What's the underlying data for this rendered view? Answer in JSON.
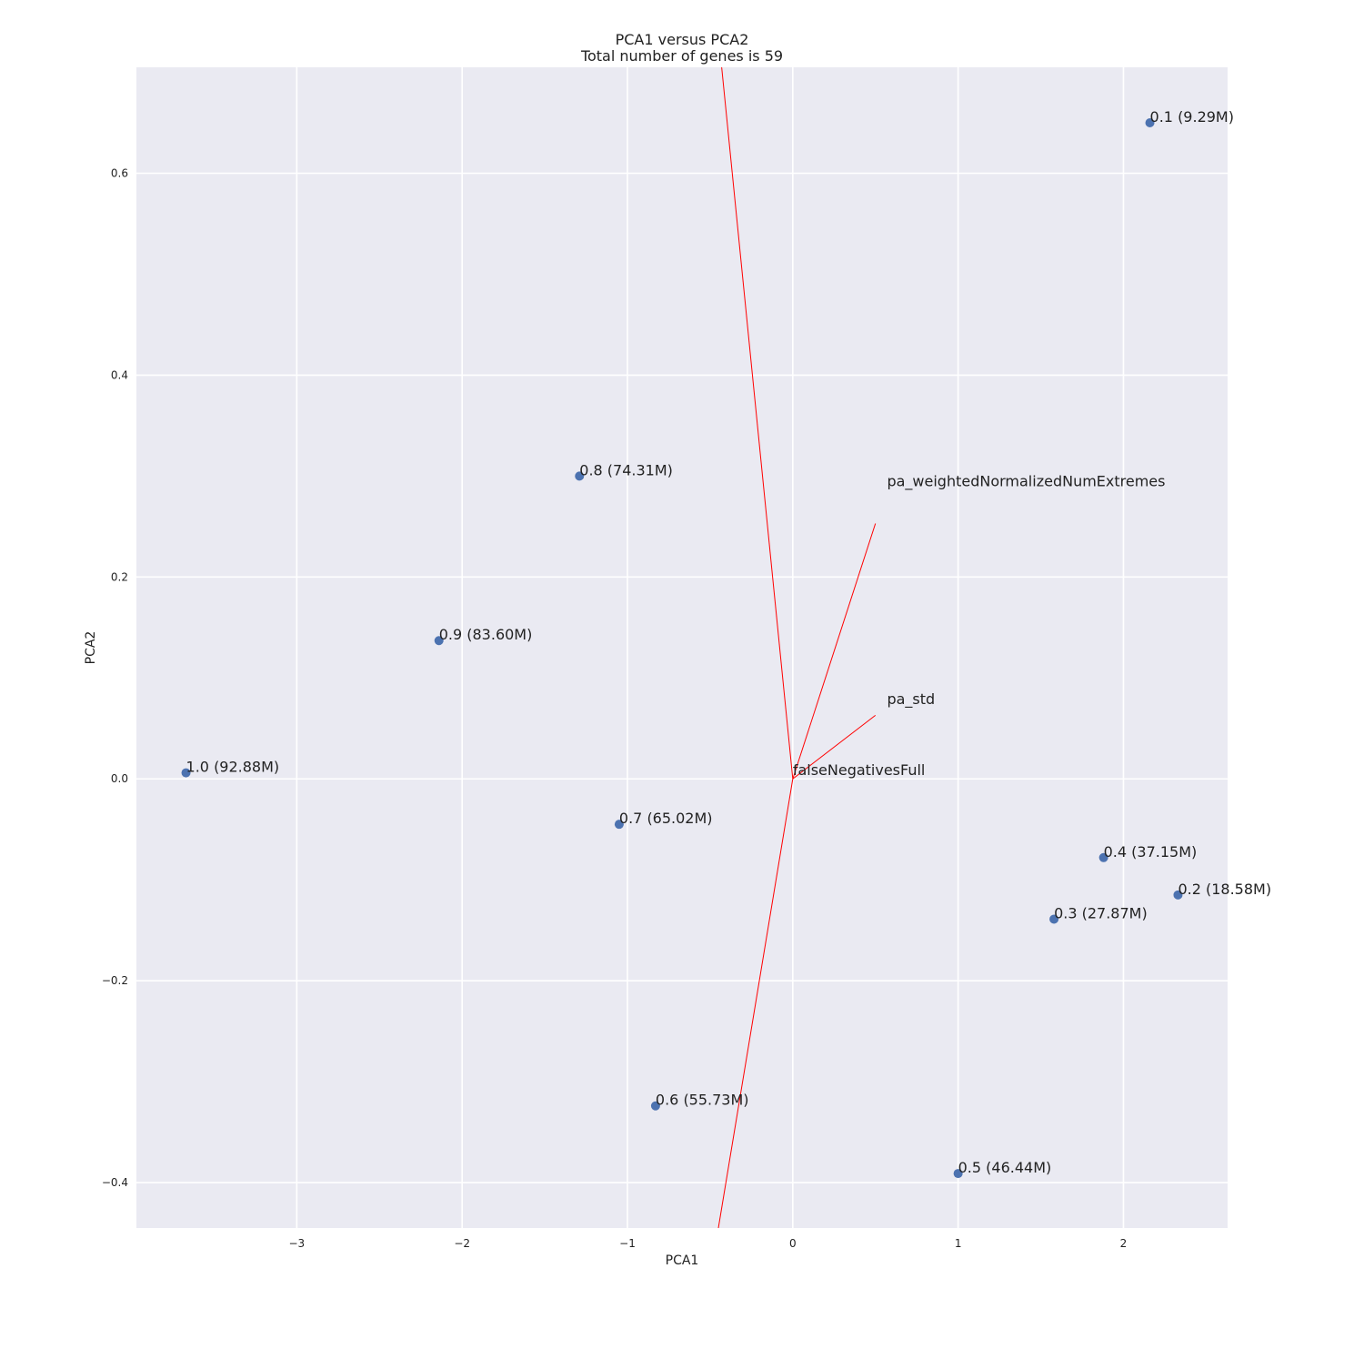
{
  "chart_data": {
    "type": "scatter",
    "title_line1": "PCA1 versus PCA2",
    "title_line2": "Total number of genes is 59",
    "xlabel": "PCA1",
    "ylabel": "PCA2",
    "xlim": [
      -3.97,
      2.63
    ],
    "ylim": [
      -0.445,
      0.705
    ],
    "x_ticks": [
      -3,
      -2,
      -1,
      0,
      1,
      2
    ],
    "x_tick_labels": [
      "−3",
      "−2",
      "−1",
      "0",
      "1",
      "2"
    ],
    "y_ticks": [
      -0.4,
      -0.2,
      0.0,
      0.2,
      0.4,
      0.6
    ],
    "y_tick_labels": [
      "−0.4",
      "−0.2",
      "0.0",
      "0.2",
      "0.4",
      "0.6"
    ],
    "grid": true,
    "points": [
      {
        "label": "0.1 (9.29M)",
        "x": 2.16,
        "y": 0.65
      },
      {
        "label": "0.2 (18.58M)",
        "x": 2.33,
        "y": -0.115
      },
      {
        "label": "0.3 (27.87M)",
        "x": 1.58,
        "y": -0.139
      },
      {
        "label": "0.4 (37.15M)",
        "x": 1.88,
        "y": -0.078
      },
      {
        "label": "0.5 (46.44M)",
        "x": 1.0,
        "y": -0.391
      },
      {
        "label": "0.6 (55.73M)",
        "x": -0.83,
        "y": -0.324
      },
      {
        "label": "0.7 (65.02M)",
        "x": -1.05,
        "y": -0.045
      },
      {
        "label": "0.8 (74.31M)",
        "x": -1.29,
        "y": 0.3
      },
      {
        "label": "0.9 (83.60M)",
        "x": -2.14,
        "y": 0.137
      },
      {
        "label": "1.0 (92.88M)",
        "x": -3.67,
        "y": 0.006
      }
    ],
    "loadings": [
      {
        "name": "pa_weightedNormalizedNumExtremes",
        "x": 0.5,
        "y": 0.253,
        "lx": 0.57,
        "ly": 0.29
      },
      {
        "name": "pa_std",
        "x": 0.5,
        "y": 0.063,
        "lx": 0.57,
        "ly": 0.074
      },
      {
        "name": "falseNegativesFull",
        "x": 0.0,
        "y": 0.0,
        "lx": 0.0,
        "ly": 0.004
      },
      {
        "name": "",
        "x": -0.43,
        "y": 0.705,
        "lx": null,
        "ly": null
      },
      {
        "name": "",
        "x": -0.45,
        "y": -0.445,
        "lx": null,
        "ly": null
      }
    ],
    "colors": {
      "background": "#EAEAF2",
      "grid": "#FFFFFF",
      "point": "#4C72B0",
      "loading": "#FF0000"
    }
  }
}
